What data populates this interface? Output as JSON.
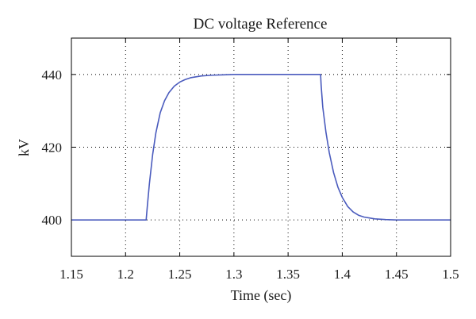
{
  "chart_data": {
    "type": "line",
    "title": "DC voltage Reference",
    "xlabel": "Time (sec)",
    "ylabel": "kV",
    "xlim": [
      1.15,
      1.5
    ],
    "ylim": [
      390,
      450
    ],
    "xticks": [
      1.15,
      1.2,
      1.25,
      1.3,
      1.35,
      1.4,
      1.45,
      1.5
    ],
    "xtick_labels": [
      "1.15",
      "1.2",
      "1.25",
      "1.3",
      "1.35",
      "1.4",
      "1.45",
      "1.5"
    ],
    "yticks": [
      400,
      420,
      440
    ],
    "ytick_labels": [
      "400",
      "420",
      "440"
    ],
    "grid": true,
    "line_color": "#4a5bbd",
    "series": [
      {
        "x": [
          1.15,
          1.2,
          1.219,
          1.22,
          1.222,
          1.225,
          1.228,
          1.232,
          1.236,
          1.24,
          1.245,
          1.25,
          1.255,
          1.26,
          1.27,
          1.28,
          1.29,
          1.3,
          1.35,
          1.38,
          1.3805,
          1.382,
          1.385,
          1.388,
          1.392,
          1.396,
          1.4,
          1.405,
          1.41,
          1.415,
          1.42,
          1.43,
          1.44,
          1.45,
          1.5
        ],
        "y": [
          400,
          400,
          400,
          403.5,
          410,
          418,
          424,
          429.5,
          432.8,
          435,
          436.8,
          437.9,
          438.6,
          439.1,
          439.6,
          439.8,
          439.9,
          440,
          440,
          440,
          437,
          431,
          424,
          418.5,
          413,
          409,
          406.2,
          403.7,
          402.2,
          401.3,
          400.8,
          400.3,
          400.1,
          400,
          400
        ]
      }
    ]
  }
}
